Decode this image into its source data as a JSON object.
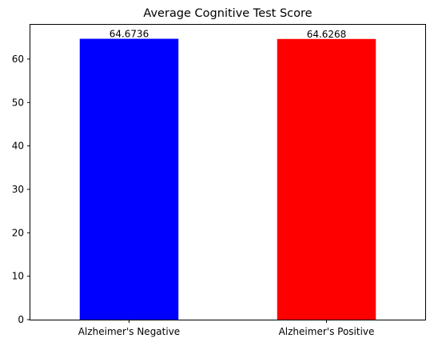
{
  "chart_data": {
    "type": "bar",
    "title": "Average Cognitive Test Score",
    "xlabel": "",
    "ylabel": "",
    "categories": [
      "Alzheimer's Negative",
      "Alzheimer's Positive"
    ],
    "values": [
      64.6736,
      64.6268
    ],
    "data_labels": [
      "64.6736",
      "64.6268"
    ],
    "bar_colors": [
      "#0000ff",
      "#ff0000"
    ],
    "ylim": [
      0,
      67.9
    ],
    "yticks": [
      0,
      10,
      20,
      30,
      40,
      50,
      60
    ],
    "ytick_labels": [
      "0",
      "10",
      "20",
      "30",
      "40",
      "50",
      "60"
    ],
    "grid": false,
    "legend": "none"
  }
}
